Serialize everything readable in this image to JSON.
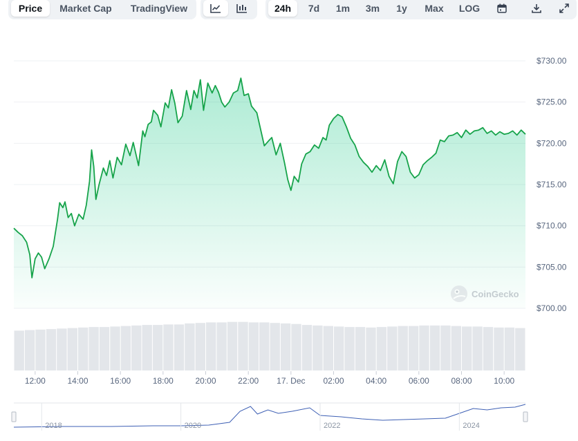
{
  "tabs": {
    "price": "Price",
    "market_cap": "Market Cap",
    "tradingview": "TradingView"
  },
  "chart_type_icons": [
    "line-chart-icon",
    "candlestick-chart-icon"
  ],
  "ranges": [
    "24h",
    "7d",
    "1m",
    "3m",
    "1y",
    "Max",
    "LOG"
  ],
  "active_range": "24h",
  "tool_icons": [
    "calendar-icon",
    "download-icon",
    "expand-icon"
  ],
  "watermark": "CoinGecko",
  "colors": {
    "line": "#16a34a",
    "area_top": "#16c784",
    "volume": "#e3e6ea",
    "nav_line": "#3d5fb4",
    "grid": "#eef0f3"
  },
  "chart_data": [
    {
      "type": "area",
      "ylim": [
        700,
        730
      ],
      "y_ticks": [
        "$730.00",
        "$725.00",
        "$720.00",
        "$715.00",
        "$710.00",
        "$705.00",
        "$700.00"
      ],
      "x_ticks": [
        "12:00",
        "14:00",
        "16:00",
        "18:00",
        "20:00",
        "22:00",
        "17. Dec",
        "02:00",
        "04:00",
        "06:00",
        "08:00",
        "10:00"
      ],
      "x_start_hours": 11.0,
      "x_end_hours": 35.0,
      "grid": true,
      "points": [
        [
          11.0,
          709.7
        ],
        [
          11.2,
          709.2
        ],
        [
          11.4,
          708.8
        ],
        [
          11.6,
          708.0
        ],
        [
          11.75,
          706.5
        ],
        [
          11.85,
          703.7
        ],
        [
          12.0,
          706.0
        ],
        [
          12.15,
          706.7
        ],
        [
          12.3,
          706.2
        ],
        [
          12.45,
          704.8
        ],
        [
          12.65,
          706.0
        ],
        [
          12.85,
          707.5
        ],
        [
          13.05,
          710.8
        ],
        [
          13.15,
          712.8
        ],
        [
          13.3,
          712.2
        ],
        [
          13.4,
          712.9
        ],
        [
          13.55,
          711.0
        ],
        [
          13.7,
          711.5
        ],
        [
          13.85,
          710.0
        ],
        [
          14.05,
          711.4
        ],
        [
          14.25,
          710.8
        ],
        [
          14.4,
          712.5
        ],
        [
          14.55,
          715.4
        ],
        [
          14.65,
          719.2
        ],
        [
          14.75,
          717.2
        ],
        [
          14.85,
          713.2
        ],
        [
          15.0,
          715.0
        ],
        [
          15.2,
          717.0
        ],
        [
          15.35,
          716.1
        ],
        [
          15.5,
          717.9
        ],
        [
          15.65,
          715.8
        ],
        [
          15.85,
          718.3
        ],
        [
          16.05,
          717.4
        ],
        [
          16.25,
          719.9
        ],
        [
          16.45,
          718.5
        ],
        [
          16.6,
          720.1
        ],
        [
          16.85,
          717.3
        ],
        [
          17.05,
          721.5
        ],
        [
          17.15,
          720.8
        ],
        [
          17.3,
          722.3
        ],
        [
          17.45,
          722.6
        ],
        [
          17.55,
          724.0
        ],
        [
          17.75,
          723.4
        ],
        [
          17.9,
          722.0
        ],
        [
          18.1,
          724.9
        ],
        [
          18.25,
          724.3
        ],
        [
          18.4,
          726.5
        ],
        [
          18.55,
          724.9
        ],
        [
          18.7,
          722.5
        ],
        [
          18.9,
          723.3
        ],
        [
          19.1,
          726.4
        ],
        [
          19.3,
          724.1
        ],
        [
          19.45,
          726.4
        ],
        [
          19.6,
          725.5
        ],
        [
          19.75,
          727.7
        ],
        [
          19.9,
          724.0
        ],
        [
          20.1,
          727.3
        ],
        [
          20.3,
          726.1
        ],
        [
          20.45,
          727.0
        ],
        [
          20.6,
          726.2
        ],
        [
          20.75,
          725.0
        ],
        [
          20.9,
          724.4
        ],
        [
          21.1,
          725.0
        ],
        [
          21.3,
          726.1
        ],
        [
          21.5,
          726.4
        ],
        [
          21.65,
          727.9
        ],
        [
          21.8,
          725.8
        ],
        [
          22.0,
          726.0
        ],
        [
          22.15,
          724.5
        ],
        [
          22.4,
          723.7
        ],
        [
          22.55,
          722.0
        ],
        [
          22.75,
          719.7
        ],
        [
          22.95,
          720.3
        ],
        [
          23.1,
          720.7
        ],
        [
          23.3,
          718.6
        ],
        [
          23.5,
          720.0
        ],
        [
          23.7,
          717.6
        ],
        [
          23.85,
          715.6
        ],
        [
          24.0,
          714.3
        ],
        [
          24.15,
          716.0
        ],
        [
          24.35,
          715.3
        ],
        [
          24.5,
          717.5
        ],
        [
          24.7,
          718.7
        ],
        [
          24.9,
          719.0
        ],
        [
          25.1,
          719.8
        ],
        [
          25.3,
          719.4
        ],
        [
          25.5,
          720.7
        ],
        [
          25.65,
          720.4
        ],
        [
          25.8,
          722.2
        ],
        [
          26.0,
          723.0
        ],
        [
          26.2,
          723.5
        ],
        [
          26.4,
          723.2
        ],
        [
          26.6,
          722.0
        ],
        [
          26.8,
          720.6
        ],
        [
          27.0,
          719.8
        ],
        [
          27.2,
          718.4
        ],
        [
          27.4,
          717.7
        ],
        [
          27.6,
          717.2
        ],
        [
          27.8,
          716.5
        ],
        [
          28.0,
          717.3
        ],
        [
          28.2,
          716.7
        ],
        [
          28.4,
          718.0
        ],
        [
          28.6,
          716.0
        ],
        [
          28.8,
          715.1
        ],
        [
          29.0,
          717.8
        ],
        [
          29.2,
          719.0
        ],
        [
          29.4,
          718.4
        ],
        [
          29.6,
          716.5
        ],
        [
          29.8,
          715.8
        ],
        [
          30.0,
          716.2
        ],
        [
          30.2,
          717.4
        ],
        [
          30.4,
          717.9
        ],
        [
          30.6,
          718.3
        ],
        [
          30.8,
          718.8
        ],
        [
          31.0,
          720.4
        ],
        [
          31.2,
          720.2
        ],
        [
          31.4,
          720.9
        ],
        [
          31.6,
          721.0
        ],
        [
          31.8,
          721.3
        ],
        [
          32.0,
          720.7
        ],
        [
          32.2,
          721.6
        ],
        [
          32.4,
          721.1
        ],
        [
          32.6,
          721.5
        ],
        [
          32.8,
          721.6
        ],
        [
          33.0,
          721.9
        ],
        [
          33.2,
          721.2
        ],
        [
          33.4,
          721.5
        ],
        [
          33.6,
          721.0
        ],
        [
          33.8,
          721.4
        ],
        [
          34.0,
          721.1
        ],
        [
          34.2,
          721.2
        ],
        [
          34.4,
          721.5
        ],
        [
          34.6,
          721.0
        ],
        [
          34.8,
          721.6
        ],
        [
          35.0,
          721.1
        ]
      ]
    },
    {
      "type": "bar",
      "description_role": "volume",
      "values_relative": [
        0.78,
        0.79,
        0.8,
        0.81,
        0.82,
        0.83,
        0.84,
        0.85,
        0.85,
        0.86,
        0.87,
        0.88,
        0.89,
        0.89,
        0.9,
        0.9,
        0.92,
        0.93,
        0.94,
        0.94,
        0.95,
        0.95,
        0.94,
        0.94,
        0.93,
        0.92,
        0.91,
        0.89,
        0.88,
        0.87,
        0.86,
        0.85,
        0.85,
        0.84,
        0.85,
        0.86,
        0.87,
        0.87,
        0.88,
        0.88,
        0.88,
        0.87,
        0.86,
        0.86,
        0.85,
        0.84,
        0.84,
        0.83
      ]
    },
    {
      "type": "line",
      "description_role": "navigator",
      "x_ticks": [
        "2018",
        "2020",
        "2022",
        "2024"
      ],
      "x_start_year": 2017.6,
      "x_end_year": 2024.95,
      "points": [
        [
          2017.6,
          5
        ],
        [
          2018.3,
          6
        ],
        [
          2019.0,
          6
        ],
        [
          2019.6,
          7
        ],
        [
          2020.0,
          7
        ],
        [
          2020.4,
          8
        ],
        [
          2020.7,
          12
        ],
        [
          2020.85,
          28
        ],
        [
          2021.0,
          35
        ],
        [
          2021.1,
          24
        ],
        [
          2021.25,
          30
        ],
        [
          2021.4,
          25
        ],
        [
          2021.6,
          28
        ],
        [
          2021.85,
          33
        ],
        [
          2022.0,
          22
        ],
        [
          2022.3,
          20
        ],
        [
          2022.6,
          17
        ],
        [
          2022.9,
          15
        ],
        [
          2023.2,
          16
        ],
        [
          2023.5,
          17
        ],
        [
          2023.8,
          18
        ],
        [
          2024.0,
          25
        ],
        [
          2024.2,
          32
        ],
        [
          2024.4,
          30
        ],
        [
          2024.6,
          33
        ],
        [
          2024.8,
          34
        ],
        [
          2024.95,
          38
        ]
      ]
    }
  ]
}
